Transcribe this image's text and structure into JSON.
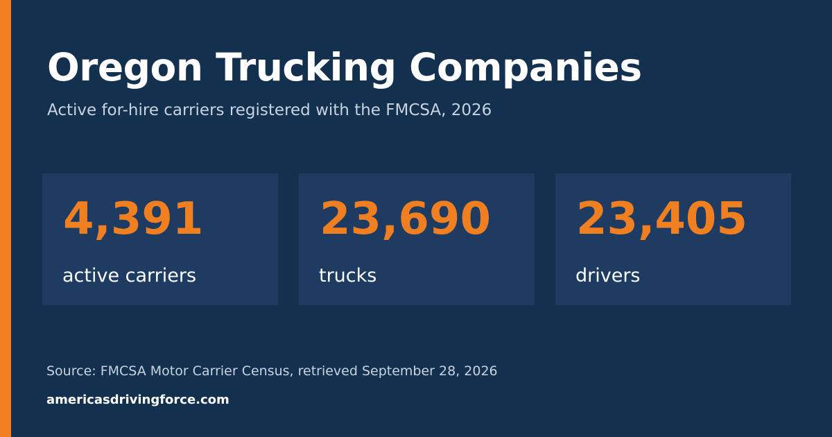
{
  "header": {
    "title": "Oregon Trucking Companies",
    "subtitle": "Active for-hire carriers registered with the FMCSA, 2026"
  },
  "stats": [
    {
      "value": "4,391",
      "label": "active carriers"
    },
    {
      "value": "23,690",
      "label": "trucks"
    },
    {
      "value": "23,405",
      "label": "drivers"
    }
  ],
  "footer": {
    "source": "Source: FMCSA Motor Carrier Census, retrieved September 28, 2026",
    "site": "americasdrivingforce.com"
  },
  "colors": {
    "background": "#14304f",
    "panel": "#1e3b61",
    "accent": "#f07f21",
    "text": "#ffffff",
    "muted_text": "#c8d3e0"
  }
}
